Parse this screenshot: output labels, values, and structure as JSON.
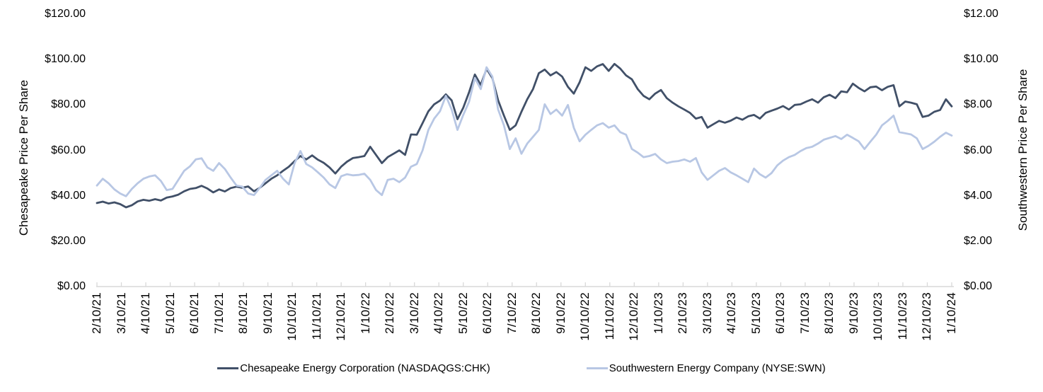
{
  "chart_data": {
    "type": "line",
    "title": "",
    "x_resolution": "weekly samples between monthly axis ticks",
    "grid": false,
    "legend_position": "bottom",
    "left_axis": {
      "title": "Chesapeake Price Per Share",
      "min": 0,
      "max": 120,
      "step": 20,
      "tick_labels": [
        "$120.00",
        "$100.00",
        "$80.00",
        "$60.00",
        "$40.00",
        "$20.00",
        "$0.00"
      ]
    },
    "right_axis": {
      "title": "Southwestern Price Per Share",
      "min": 0,
      "max": 12,
      "step": 2,
      "tick_labels": [
        "$12.00",
        "$10.00",
        "$8.00",
        "$6.00",
        "$4.00",
        "$2.00",
        "$0.00"
      ]
    },
    "x_axis": {
      "tick_labels": [
        "2/10/21",
        "3/10/21",
        "4/10/21",
        "5/10/21",
        "6/10/21",
        "7/10/21",
        "8/10/21",
        "9/10/21",
        "10/10/21",
        "11/10/21",
        "12/10/21",
        "1/10/22",
        "2/10/22",
        "3/10/22",
        "4/10/22",
        "5/10/22",
        "6/10/22",
        "7/10/22",
        "8/10/22",
        "9/10/22",
        "10/10/22",
        "11/10/22",
        "12/10/22",
        "1/10/23",
        "2/10/23",
        "3/10/23",
        "4/10/23",
        "5/10/23",
        "6/10/23",
        "7/10/23",
        "8/10/23",
        "9/10/23",
        "10/10/23",
        "11/10/23",
        "12/10/23",
        "1/10/24"
      ]
    },
    "series": [
      {
        "name": "Chesapeake Energy Corporation (NASDAQGS:CHK)",
        "axis": "left",
        "color": "#415068",
        "values": [
          36.8,
          37.4,
          36.6,
          37.1,
          36.3,
          34.9,
          35.8,
          37.5,
          38.2,
          37.8,
          38.5,
          37.9,
          39.2,
          39.7,
          40.5,
          42,
          43,
          43.4,
          44.4,
          43.2,
          41.5,
          42.8,
          41.9,
          43.4,
          44,
          43.5,
          44.1,
          42,
          43.5,
          45.5,
          47.5,
          49,
          51,
          52.8,
          55.3,
          57.5,
          56,
          57.8,
          55.9,
          54.5,
          52.5,
          49.8,
          52.8,
          55,
          56.6,
          57,
          57.5,
          61.6,
          58,
          54.4,
          57,
          58.5,
          60,
          58,
          67,
          66.9,
          72,
          77.2,
          80.3,
          81.9,
          84.7,
          82,
          73.7,
          78.8,
          85.6,
          93.4,
          88.8,
          95.9,
          91.9,
          82,
          75.3,
          69,
          71,
          77,
          82.5,
          87,
          94,
          95.6,
          93,
          94.5,
          92.5,
          88,
          85,
          90,
          96.6,
          95,
          97,
          98,
          95,
          98.1,
          96,
          93,
          91.3,
          87,
          84,
          82.5,
          85,
          86.6,
          83,
          81,
          79.4,
          78,
          76.5,
          74,
          74.7,
          70,
          71.5,
          73,
          72.2,
          73.1,
          74.5,
          73.5,
          75,
          75.6,
          74,
          76.5,
          77.5,
          78.4,
          79.5,
          78,
          80,
          80.3,
          81.5,
          82.5,
          81,
          83.4,
          84.5,
          83,
          86,
          85.6,
          89.4,
          87.5,
          86,
          87.8,
          88.1,
          86.5,
          88,
          88.7,
          79.4,
          81.5,
          81,
          80.3,
          74.7,
          75.3,
          77,
          77.8,
          82.5,
          79.4
        ]
      },
      {
        "name": "Southwestern Energy Company (NYSE:SWN)",
        "axis": "right",
        "color": "#B8C7E4",
        "values": [
          4.45,
          4.75,
          4.55,
          4.28,
          4.1,
          3.98,
          4.3,
          4.55,
          4.75,
          4.85,
          4.9,
          4.65,
          4.25,
          4.3,
          4.7,
          5.1,
          5.3,
          5.6,
          5.65,
          5.25,
          5.1,
          5.44,
          5.18,
          4.8,
          4.45,
          4.4,
          4.1,
          4.03,
          4.35,
          4.7,
          4.9,
          5.1,
          4.75,
          4.5,
          5.44,
          5.97,
          5.4,
          5.25,
          5.03,
          4.8,
          4.5,
          4.34,
          4.86,
          4.95,
          4.9,
          4.92,
          4.97,
          4.7,
          4.25,
          4.03,
          4.7,
          4.75,
          4.6,
          4.8,
          5.28,
          5.4,
          6,
          6.9,
          7.4,
          7.72,
          8.4,
          7.8,
          6.9,
          7.56,
          8.14,
          9.19,
          8.7,
          9.66,
          9.25,
          7.8,
          7.1,
          6.06,
          6.53,
          5.85,
          6.3,
          6.6,
          6.9,
          8.03,
          7.6,
          7.8,
          7.53,
          8,
          7,
          6.4,
          6.69,
          6.9,
          7.1,
          7.2,
          7,
          7.1,
          6.8,
          6.69,
          6.06,
          5.9,
          5.7,
          5.75,
          5.84,
          5.6,
          5.44,
          5.5,
          5.53,
          5.6,
          5.5,
          5.66,
          5.03,
          4.7,
          4.9,
          5.1,
          5.22,
          5.03,
          4.9,
          4.75,
          4.6,
          5.2,
          4.95,
          4.8,
          5,
          5.34,
          5.55,
          5.7,
          5.8,
          5.97,
          6.1,
          6.16,
          6.3,
          6.47,
          6.55,
          6.63,
          6.5,
          6.69,
          6.55,
          6.4,
          6.06,
          6.38,
          6.69,
          7.1,
          7.3,
          7.53,
          6.8,
          6.75,
          6.7,
          6.53,
          6.06,
          6.2,
          6.38,
          6.6,
          6.78,
          6.65
        ]
      }
    ],
    "colors": {
      "axis_line": "#D9D9D9",
      "text": "#000000",
      "background": "#FFFFFF"
    }
  }
}
